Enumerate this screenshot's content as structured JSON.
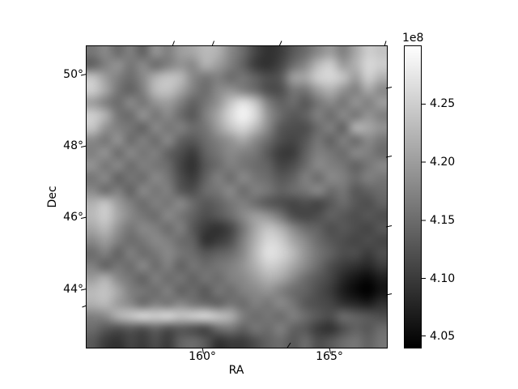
{
  "figure": {
    "type": "matplotlib-figure",
    "background": "#ffffff",
    "text_color": "#000000",
    "spine_color": "#000000"
  },
  "axes": {
    "xlabel": "RA",
    "ylabel": "Dec",
    "x_ticks": [
      {
        "value": 160,
        "label": "160°"
      },
      {
        "value": 165,
        "label": "165°"
      }
    ],
    "y_ticks": [
      {
        "value": 50,
        "label": "50°"
      },
      {
        "value": 48,
        "label": "48°"
      },
      {
        "value": 46,
        "label": "46°"
      },
      {
        "value": 44,
        "label": "44°"
      }
    ]
  },
  "colorbar": {
    "offset_label": "1e8",
    "colormap": "gray",
    "top_color": "#ffffff",
    "bottom_color": "#000000",
    "vmin_1e8": 4.04,
    "vmax_1e8": 4.3,
    "ticks": [
      {
        "value": 4.25,
        "label": "4.25"
      },
      {
        "value": 4.2,
        "label": "4.20"
      },
      {
        "value": 4.15,
        "label": "4.15"
      },
      {
        "value": 4.1,
        "label": "4.10"
      },
      {
        "value": 4.05,
        "label": "4.05"
      }
    ]
  },
  "chart_data": {
    "type": "heatmap",
    "title": "",
    "xlabel": "RA",
    "ylabel": "Dec",
    "xlim": [
      155.45,
      167.26
    ],
    "ylim": [
      42.36,
      50.78
    ],
    "x_tick_values": [
      160,
      165
    ],
    "y_tick_values": [
      50,
      48,
      46,
      44
    ],
    "grid": false,
    "colormap": "gray",
    "interpolation": "smooth",
    "value_scale": "1e8",
    "vmin_1e8": 4.04,
    "vmax_1e8": 4.3,
    "values_1e8": [
      [
        4.16,
        4.18,
        4.15,
        4.17,
        4.14,
        4.19,
        4.17,
        4.2,
        4.21,
        4.23,
        4.22,
        4.18,
        4.15,
        4.11,
        4.09,
        4.1,
        4.13,
        4.15,
        4.18,
        4.2,
        4.17,
        4.21,
        4.25,
        4.24
      ],
      [
        4.14,
        4.17,
        4.19,
        4.16,
        4.18,
        4.15,
        4.17,
        4.19,
        4.18,
        4.22,
        4.2,
        4.17,
        4.14,
        4.1,
        4.09,
        4.11,
        4.15,
        4.18,
        4.23,
        4.25,
        4.2,
        4.22,
        4.26,
        4.25
      ],
      [
        4.24,
        4.2,
        4.17,
        4.15,
        4.18,
        4.22,
        4.24,
        4.23,
        4.18,
        4.16,
        4.17,
        4.15,
        4.16,
        4.14,
        4.12,
        4.13,
        4.2,
        4.21,
        4.25,
        4.26,
        4.24,
        4.2,
        4.25,
        4.22
      ],
      [
        4.25,
        4.21,
        4.16,
        4.14,
        4.17,
        4.23,
        4.24,
        4.21,
        4.17,
        4.15,
        4.18,
        4.19,
        4.17,
        4.15,
        4.12,
        4.12,
        4.16,
        4.16,
        4.2,
        4.22,
        4.19,
        4.17,
        4.21,
        4.18
      ],
      [
        4.2,
        4.17,
        4.15,
        4.18,
        4.16,
        4.19,
        4.2,
        4.17,
        4.14,
        4.16,
        4.19,
        4.24,
        4.27,
        4.24,
        4.17,
        4.14,
        4.15,
        4.13,
        4.16,
        4.18,
        4.16,
        4.19,
        4.17,
        4.2
      ],
      [
        4.25,
        4.22,
        4.16,
        4.15,
        4.19,
        4.16,
        4.18,
        4.15,
        4.13,
        4.17,
        4.21,
        4.26,
        4.29,
        4.26,
        4.19,
        4.15,
        4.13,
        4.14,
        4.17,
        4.15,
        4.18,
        4.16,
        4.19,
        4.17
      ],
      [
        4.24,
        4.19,
        4.17,
        4.16,
        4.14,
        4.18,
        4.16,
        4.17,
        4.15,
        4.16,
        4.2,
        4.24,
        4.26,
        4.23,
        4.18,
        4.13,
        4.12,
        4.12,
        4.15,
        4.17,
        4.14,
        4.22,
        4.21,
        4.19
      ],
      [
        4.18,
        4.16,
        4.19,
        4.15,
        4.17,
        4.15,
        4.18,
        4.14,
        4.13,
        4.15,
        4.17,
        4.19,
        4.21,
        4.18,
        4.15,
        4.12,
        4.11,
        4.13,
        4.16,
        4.14,
        4.17,
        4.15,
        4.18,
        4.16
      ],
      [
        4.17,
        4.19,
        4.15,
        4.18,
        4.16,
        4.17,
        4.14,
        4.12,
        4.1,
        4.14,
        4.16,
        4.18,
        4.17,
        4.16,
        4.13,
        4.1,
        4.1,
        4.14,
        4.17,
        4.16,
        4.15,
        4.18,
        4.17,
        4.15
      ],
      [
        4.19,
        4.16,
        4.18,
        4.15,
        4.17,
        4.16,
        4.15,
        4.11,
        4.09,
        4.13,
        4.15,
        4.17,
        4.16,
        4.15,
        4.14,
        4.11,
        4.12,
        4.15,
        4.18,
        4.17,
        4.16,
        4.14,
        4.16,
        4.18
      ],
      [
        4.16,
        4.18,
        4.14,
        4.16,
        4.15,
        4.18,
        4.16,
        4.12,
        4.1,
        4.14,
        4.17,
        4.15,
        4.18,
        4.16,
        4.15,
        4.13,
        4.14,
        4.17,
        4.15,
        4.18,
        4.17,
        4.15,
        4.17,
        4.16
      ],
      [
        4.18,
        4.15,
        4.17,
        4.14,
        4.18,
        4.16,
        4.17,
        4.13,
        4.12,
        4.15,
        4.16,
        4.18,
        4.15,
        4.17,
        4.16,
        4.14,
        4.15,
        4.16,
        4.18,
        4.15,
        4.16,
        4.13,
        4.14,
        4.15
      ],
      [
        4.22,
        4.24,
        4.2,
        4.17,
        4.15,
        4.17,
        4.16,
        4.18,
        4.15,
        4.13,
        4.14,
        4.16,
        4.17,
        4.15,
        4.13,
        4.12,
        4.11,
        4.12,
        4.11,
        4.13,
        4.15,
        4.13,
        4.12,
        4.14
      ],
      [
        4.23,
        4.25,
        4.21,
        4.18,
        4.16,
        4.15,
        4.18,
        4.16,
        4.14,
        4.12,
        4.13,
        4.15,
        4.18,
        4.2,
        4.19,
        4.16,
        4.12,
        4.11,
        4.12,
        4.14,
        4.13,
        4.12,
        4.13,
        4.12
      ],
      [
        4.21,
        4.23,
        4.19,
        4.16,
        4.18,
        4.17,
        4.15,
        4.17,
        4.13,
        4.1,
        4.09,
        4.11,
        4.16,
        4.21,
        4.24,
        4.22,
        4.18,
        4.15,
        4.14,
        4.12,
        4.13,
        4.12,
        4.11,
        4.13
      ],
      [
        4.18,
        4.2,
        4.17,
        4.15,
        4.16,
        4.18,
        4.17,
        4.15,
        4.14,
        4.09,
        4.1,
        4.12,
        4.17,
        4.22,
        4.26,
        4.25,
        4.21,
        4.18,
        4.15,
        4.13,
        4.12,
        4.11,
        4.12,
        4.11
      ],
      [
        4.15,
        4.17,
        4.14,
        4.17,
        4.15,
        4.16,
        4.18,
        4.16,
        4.15,
        4.13,
        4.14,
        4.15,
        4.18,
        4.23,
        4.27,
        4.26,
        4.23,
        4.19,
        4.16,
        4.14,
        4.12,
        4.12,
        4.1,
        4.12
      ],
      [
        4.17,
        4.14,
        4.16,
        4.15,
        4.18,
        4.15,
        4.17,
        4.14,
        4.16,
        4.15,
        4.16,
        4.17,
        4.19,
        4.22,
        4.25,
        4.24,
        4.21,
        4.18,
        4.15,
        4.12,
        4.1,
        4.09,
        4.08,
        4.1
      ],
      [
        4.2,
        4.22,
        4.18,
        4.16,
        4.14,
        4.17,
        4.15,
        4.16,
        4.14,
        4.16,
        4.15,
        4.17,
        4.18,
        4.2,
        4.22,
        4.21,
        4.18,
        4.15,
        4.13,
        4.11,
        4.08,
        4.06,
        4.05,
        4.07
      ],
      [
        4.23,
        4.24,
        4.21,
        4.17,
        4.16,
        4.15,
        4.17,
        4.14,
        4.15,
        4.13,
        4.16,
        4.15,
        4.17,
        4.18,
        4.19,
        4.17,
        4.15,
        4.14,
        4.12,
        4.1,
        4.07,
        4.05,
        4.04,
        4.06
      ],
      [
        4.22,
        4.23,
        4.2,
        4.18,
        4.15,
        4.17,
        4.16,
        4.18,
        4.16,
        4.15,
        4.14,
        4.16,
        4.15,
        4.17,
        4.16,
        4.18,
        4.16,
        4.13,
        4.12,
        4.11,
        4.09,
        4.08,
        4.07,
        4.09
      ],
      [
        4.17,
        4.18,
        4.22,
        4.24,
        4.26,
        4.25,
        4.26,
        4.24,
        4.25,
        4.26,
        4.24,
        4.22,
        4.17,
        4.15,
        4.16,
        4.15,
        4.17,
        4.15,
        4.13,
        4.12,
        4.15,
        4.14,
        4.13,
        4.12
      ],
      [
        4.15,
        4.13,
        4.12,
        4.13,
        4.12,
        4.14,
        4.12,
        4.13,
        4.12,
        4.11,
        4.15,
        4.16,
        4.14,
        4.16,
        4.15,
        4.17,
        4.14,
        4.13,
        4.1,
        4.09,
        4.12,
        4.14,
        4.13,
        4.15
      ],
      [
        4.13,
        4.1,
        4.09,
        4.11,
        4.1,
        4.12,
        4.1,
        4.14,
        4.15,
        4.13,
        4.09,
        4.1,
        4.1,
        4.12,
        4.14,
        4.15,
        4.13,
        4.15,
        4.12,
        4.13,
        4.15,
        4.16,
        4.14,
        4.16
      ]
    ],
    "legend": null,
    "colorbar_position": "right"
  }
}
